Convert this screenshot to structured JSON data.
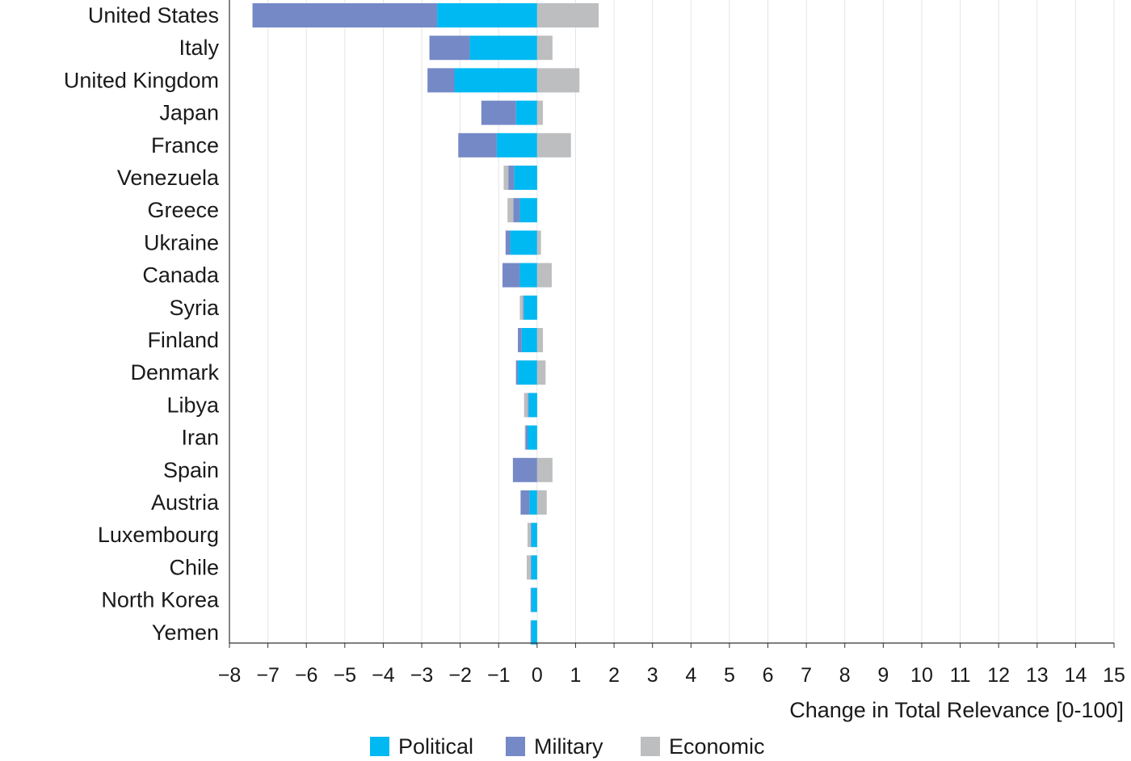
{
  "chart_data": {
    "type": "bar",
    "orientation": "horizontal",
    "stacked": true,
    "categories": [
      "United States",
      "Italy",
      "United Kingdom",
      "Japan",
      "France",
      "Venezuela",
      "Greece",
      "Ukraine",
      "Canada",
      "Syria",
      "Finland",
      "Denmark",
      "Libya",
      "Iran",
      "Spain",
      "Austria",
      "Luxembourg",
      "Chile",
      "North Korea",
      "Yemen"
    ],
    "series": [
      {
        "name": "Political",
        "color": "#00B9F2",
        "values": [
          -2.6,
          -1.75,
          -2.15,
          -0.55,
          -1.05,
          -0.6,
          -0.45,
          -0.7,
          -0.45,
          -0.35,
          -0.4,
          -0.5,
          -0.22,
          -0.25,
          0.0,
          -0.2,
          -0.15,
          -0.15,
          -0.15,
          -0.15
        ]
      },
      {
        "name": "Military",
        "color": "#7589C6",
        "values": [
          -4.8,
          -1.05,
          -0.7,
          -0.9,
          -1.0,
          -0.15,
          -0.17,
          -0.12,
          -0.45,
          -0.02,
          -0.1,
          -0.05,
          -0.02,
          -0.05,
          -0.63,
          -0.23,
          -0.02,
          -0.02,
          -0.02,
          -0.02
        ]
      },
      {
        "name": "Economic",
        "color": "#BDBEC0",
        "values": [
          1.6,
          0.4,
          1.1,
          0.15,
          0.88,
          -0.12,
          -0.15,
          0.1,
          0.38,
          -0.08,
          0.15,
          0.22,
          -0.1,
          -0.02,
          0.4,
          0.25,
          -0.08,
          -0.1,
          0.0,
          0.0
        ]
      }
    ],
    "xlabel": "Change in Total Relevance [0-100]",
    "ylabel": "",
    "xlim": [
      -8,
      15
    ],
    "xticks": [
      -8,
      -7,
      -6,
      -5,
      -4,
      -3,
      -2,
      -1,
      0,
      1,
      2,
      3,
      4,
      5,
      6,
      7,
      8,
      9,
      10,
      11,
      12,
      13,
      14,
      15
    ],
    "grid": "vertical",
    "legend_position": "bottom-center"
  }
}
